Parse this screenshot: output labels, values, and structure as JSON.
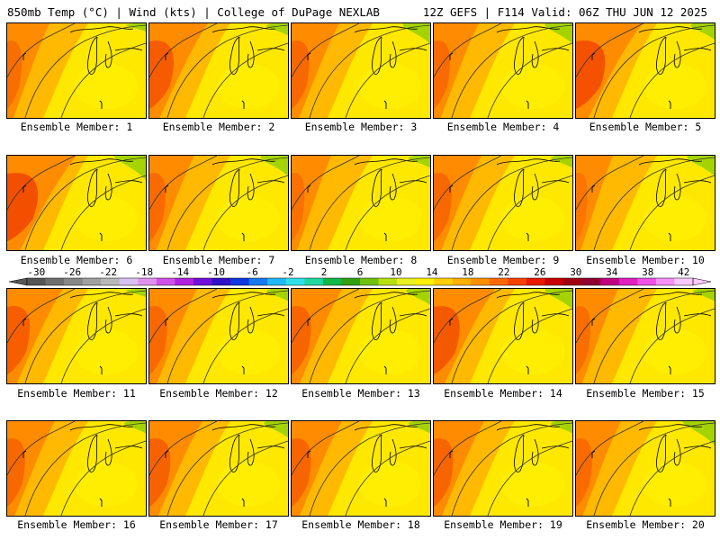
{
  "header": {
    "left": "850mb Temp (°C) | Wind (kts) | College of DuPage NEXLAB",
    "right": "12Z GEFS | F114 Valid: 06Z THU JUN 12 2025"
  },
  "members": [
    {
      "label": "Ensemble Member: 1"
    },
    {
      "label": "Ensemble Member: 2"
    },
    {
      "label": "Ensemble Member: 3"
    },
    {
      "label": "Ensemble Member: 4"
    },
    {
      "label": "Ensemble Member: 5"
    },
    {
      "label": "Ensemble Member: 6"
    },
    {
      "label": "Ensemble Member: 7"
    },
    {
      "label": "Ensemble Member: 8"
    },
    {
      "label": "Ensemble Member: 9"
    },
    {
      "label": "Ensemble Member: 10"
    },
    {
      "label": "Ensemble Member: 11"
    },
    {
      "label": "Ensemble Member: 12"
    },
    {
      "label": "Ensemble Member: 13"
    },
    {
      "label": "Ensemble Member: 14"
    },
    {
      "label": "Ensemble Member: 15"
    },
    {
      "label": "Ensemble Member: 16"
    },
    {
      "label": "Ensemble Member: 17"
    },
    {
      "label": "Ensemble Member: 18"
    },
    {
      "label": "Ensemble Member: 19"
    },
    {
      "label": "Ensemble Member: 20"
    }
  ],
  "colorbar": {
    "tick_labels": [
      "-30",
      "-26",
      "-22",
      "-18",
      "-14",
      "-10",
      "-6",
      "-2",
      "2",
      "6",
      "10",
      "14",
      "18",
      "22",
      "26",
      "30",
      "34",
      "38",
      "42"
    ],
    "colors": [
      "#555555",
      "#6e6e6e",
      "#878787",
      "#a0a0a0",
      "#b8b8b8",
      "#d8c0f0",
      "#e090f0",
      "#d050e8",
      "#b020e0",
      "#7010d8",
      "#3010c8",
      "#1038e0",
      "#1878f0",
      "#20b8f8",
      "#30e0e8",
      "#20d8a0",
      "#10b848",
      "#30a010",
      "#70c010",
      "#b8e010",
      "#e8f020",
      "#fff000",
      "#ffd000",
      "#ffb000",
      "#ff9000",
      "#ff6800",
      "#f84000",
      "#e81800",
      "#c80000",
      "#a00010",
      "#900030",
      "#c00080",
      "#e020c0",
      "#f050e8",
      "#f890f8",
      "#fcc8fc"
    ]
  }
}
